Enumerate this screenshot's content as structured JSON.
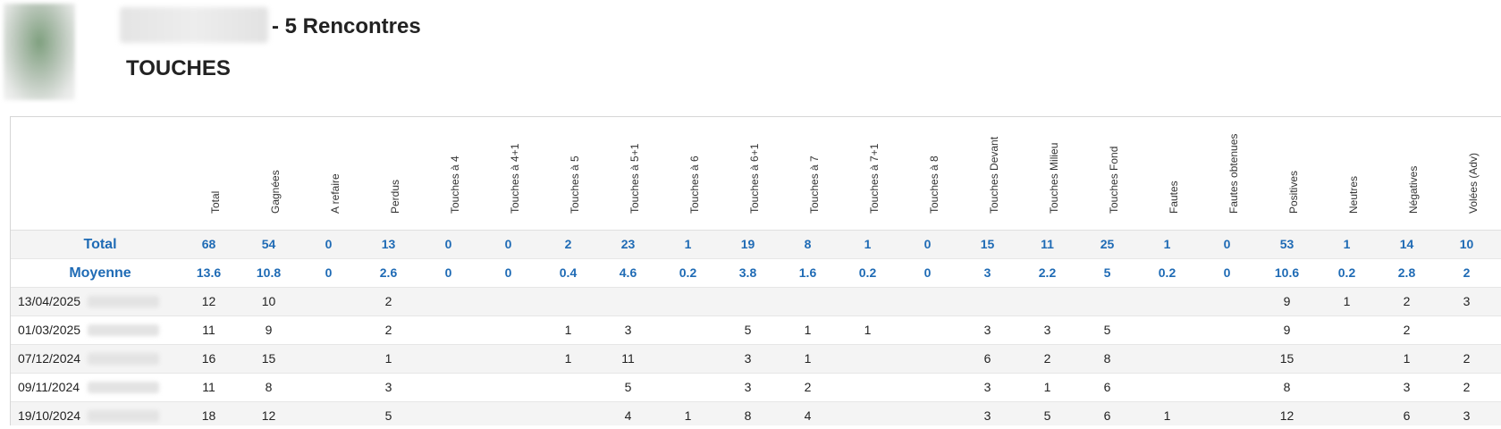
{
  "header": {
    "title_suffix": "- 5 Rencontres",
    "page_title": "TOUCHES"
  },
  "columns": [
    "Total",
    "Gagnées",
    "A refaire",
    "Perdus",
    "Touches à 4",
    "Touches à 4+1",
    "Touches à 5",
    "Touches à 5+1",
    "Touches à 6",
    "Touches à 6+1",
    "Touches à 7",
    "Touches à 7+1",
    "Touches à 8",
    "Touches Devant",
    "Touches Milieu",
    "Touches Fond",
    "Fautes",
    "Fautes obtenues",
    "Positives",
    "Neutres",
    "Négatives",
    "Volées (Adv)"
  ],
  "summary_rows": [
    {
      "label": "Total",
      "values": [
        "68",
        "54",
        "0",
        "13",
        "0",
        "0",
        "2",
        "23",
        "1",
        "19",
        "8",
        "1",
        "0",
        "15",
        "11",
        "25",
        "1",
        "0",
        "53",
        "1",
        "14",
        "10"
      ]
    },
    {
      "label": "Moyenne",
      "values": [
        "13.6",
        "10.8",
        "0",
        "2.6",
        "0",
        "0",
        "0.4",
        "4.6",
        "0.2",
        "3.8",
        "1.6",
        "0.2",
        "0",
        "3",
        "2.2",
        "5",
        "0.2",
        "0",
        "10.6",
        "0.2",
        "2.8",
        "2"
      ]
    }
  ],
  "match_rows": [
    {
      "date": "13/04/2025",
      "values": [
        "12",
        "10",
        "",
        "2",
        "",
        "",
        "",
        "",
        "",
        "",
        "",
        "",
        "",
        "",
        "",
        "",
        "",
        "",
        "9",
        "1",
        "2",
        "3"
      ]
    },
    {
      "date": "01/03/2025",
      "values": [
        "11",
        "9",
        "",
        "2",
        "",
        "",
        "1",
        "3",
        "",
        "5",
        "1",
        "1",
        "",
        "3",
        "3",
        "5",
        "",
        "",
        "9",
        "",
        "2",
        ""
      ]
    },
    {
      "date": "07/12/2024",
      "values": [
        "16",
        "15",
        "",
        "1",
        "",
        "",
        "1",
        "11",
        "",
        "3",
        "1",
        "",
        "",
        "6",
        "2",
        "8",
        "",
        "",
        "15",
        "",
        "1",
        "2"
      ]
    },
    {
      "date": "09/11/2024",
      "values": [
        "11",
        "8",
        "",
        "3",
        "",
        "",
        "",
        "5",
        "",
        "3",
        "2",
        "",
        "",
        "3",
        "1",
        "6",
        "",
        "",
        "8",
        "",
        "3",
        "2"
      ]
    },
    {
      "date": "19/10/2024",
      "values": [
        "18",
        "12",
        "",
        "5",
        "",
        "",
        "",
        "4",
        "1",
        "8",
        "4",
        "",
        "",
        "3",
        "5",
        "6",
        "1",
        "",
        "12",
        "",
        "6",
        "3"
      ]
    }
  ]
}
